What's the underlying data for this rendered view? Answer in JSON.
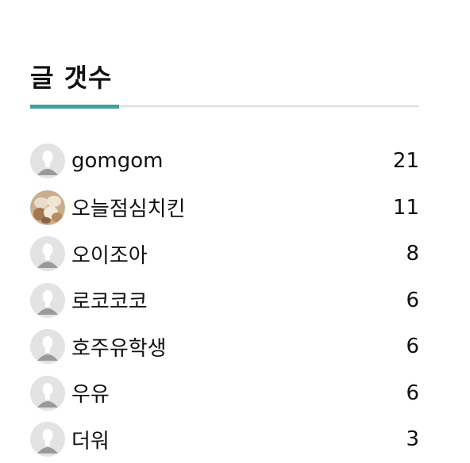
{
  "widget": {
    "title": "글 갯수",
    "accent_color": "#3fa09c"
  },
  "rows": [
    {
      "name": "gomgom",
      "count": "21",
      "avatar": "default-avatar-icon"
    },
    {
      "name": "오늘점심치킨",
      "count": "11",
      "avatar": "user-photo"
    },
    {
      "name": "오이조아",
      "count": "8",
      "avatar": "default-avatar-icon"
    },
    {
      "name": "로코코코",
      "count": "6",
      "avatar": "default-avatar-icon"
    },
    {
      "name": "호주유학생",
      "count": "6",
      "avatar": "default-avatar-icon"
    },
    {
      "name": "우유",
      "count": "6",
      "avatar": "default-avatar-icon"
    },
    {
      "name": "더워",
      "count": "3",
      "avatar": "default-avatar-icon"
    }
  ]
}
